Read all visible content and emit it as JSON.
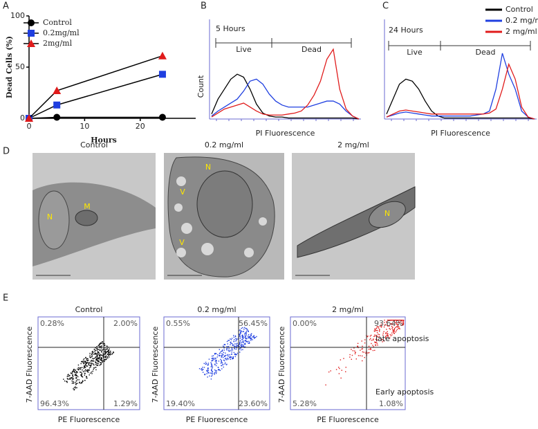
{
  "panels": [
    "A",
    "B",
    "C",
    "D",
    "E"
  ],
  "chart_data": [
    {
      "type": "line",
      "ylabel": "Dead Cells (%)",
      "xlabel": "Hours",
      "x": [
        0,
        5,
        24
      ],
      "xlim": [
        0,
        25
      ],
      "xticks": [
        0,
        10,
        20
      ],
      "ylim": [
        0,
        100
      ],
      "yticks": [
        0,
        50,
        100
      ],
      "legend": "upper left",
      "series": [
        {
          "name": "Control",
          "color": "#000000",
          "marker": "circle",
          "values": [
            0,
            1,
            1
          ]
        },
        {
          "name": "0.2mg/ml",
          "color": "#1f3fe0",
          "marker": "square",
          "values": [
            0,
            13,
            43
          ]
        },
        {
          "name": "2mg/ml",
          "color": "#e01b1b",
          "marker": "triangle",
          "values": [
            0,
            27,
            61
          ]
        }
      ]
    },
    {
      "type": "histogram",
      "title": "5 Hours",
      "gates": [
        "Live",
        "Dead"
      ],
      "ylabel": "Count",
      "xlabel": "PI Fluorescence",
      "ylim": [
        0,
        100
      ],
      "series": [
        {
          "color": "#000000",
          "values": [
            5,
            20,
            30,
            40,
            45,
            42,
            30,
            15,
            6,
            3,
            2,
            2,
            1,
            1,
            1,
            1,
            1,
            1,
            1,
            1,
            1,
            1,
            1,
            0
          ]
        },
        {
          "color": "#1f3fe0",
          "values": [
            3,
            8,
            12,
            16,
            20,
            28,
            38,
            40,
            35,
            25,
            18,
            14,
            12,
            12,
            12,
            12,
            14,
            16,
            18,
            18,
            15,
            8,
            3,
            0
          ]
        },
        {
          "color": "#e01b1b",
          "values": [
            2,
            6,
            10,
            12,
            14,
            16,
            12,
            8,
            5,
            4,
            4,
            4,
            5,
            6,
            8,
            14,
            24,
            38,
            60,
            70,
            30,
            10,
            3,
            0
          ]
        }
      ]
    },
    {
      "type": "histogram",
      "title": "24 Hours",
      "gates": [
        "Live",
        "Dead"
      ],
      "xlabel": "PI Fluorescence",
      "ylim": [
        0,
        100
      ],
      "legend": "upper right",
      "series": [
        {
          "name": "Control",
          "color": "#000000",
          "values": [
            5,
            20,
            35,
            40,
            38,
            30,
            18,
            8,
            3,
            1,
            1,
            1,
            1,
            1,
            1,
            1,
            1,
            1,
            1,
            1,
            1,
            1,
            1,
            0
          ]
        },
        {
          "name": "0.2 mg/ml",
          "color": "#1f3fe0",
          "values": [
            2,
            4,
            6,
            7,
            6,
            5,
            4,
            3,
            3,
            3,
            3,
            3,
            3,
            3,
            4,
            5,
            8,
            30,
            66,
            45,
            30,
            8,
            2,
            0
          ]
        },
        {
          "name": "2 mg/ml",
          "color": "#e01b1b",
          "values": [
            2,
            5,
            8,
            9,
            8,
            7,
            6,
            5,
            5,
            5,
            5,
            5,
            5,
            5,
            5,
            5,
            6,
            10,
            30,
            55,
            40,
            12,
            2,
            0
          ]
        }
      ]
    }
  ],
  "micrographs": {
    "titles": [
      "Control",
      "0.2 mg/ml",
      "2 mg/ml"
    ],
    "labels": [
      [
        "N",
        "M"
      ],
      [
        "N",
        "V",
        "V"
      ],
      [
        "N"
      ]
    ]
  },
  "flow": {
    "xlabel": "PE Fluorescence",
    "ylabel": "7-AAD Fluorescence",
    "plots": [
      {
        "title": "Control",
        "color": "#000000",
        "quadrants": [
          "0.28%",
          "2.00%",
          "96.43%",
          "1.29%"
        ]
      },
      {
        "title": "0.2 mg/ml",
        "color": "#1f3fe0",
        "quadrants": [
          "0.55%",
          "56.45%",
          "19.40%",
          "23.60%"
        ]
      },
      {
        "title": "2 mg/ml",
        "color": "#e01b1b",
        "quadrants": [
          "0.00%",
          "93.64%",
          "5.28%",
          "1.08%"
        ]
      }
    ],
    "annotations": [
      "late  apoptosis",
      "Early  apoptosis"
    ]
  }
}
